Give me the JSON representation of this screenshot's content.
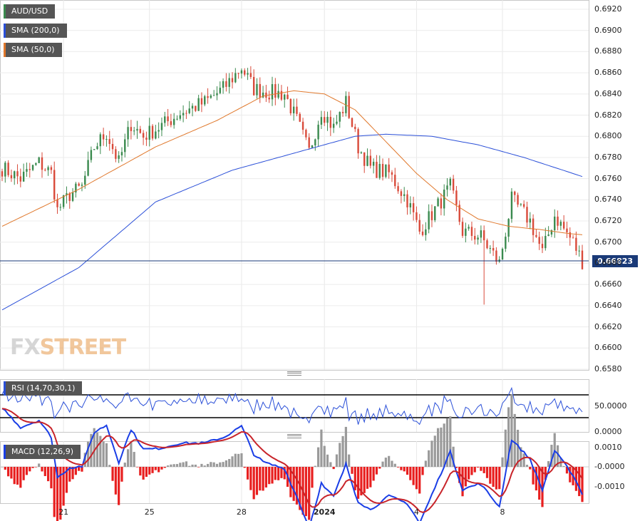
{
  "legend": {
    "symbol": "AUD/USD",
    "sma200": "SMA (200,0)",
    "sma50": "SMA (50,0)",
    "rsi": "RSI (14,70,30,1)",
    "macd": "MACD (12,26,9)"
  },
  "watermark": {
    "part1": "FX",
    "part2": "STREET"
  },
  "last_price": "0.66823",
  "colors": {
    "up": "#3a8a4e",
    "down": "#d94a3a",
    "sma200": "#2a4fd8",
    "sma50": "#e0782c",
    "rsi": "#2a4fd8",
    "macd": "#1a3ee6",
    "signal": "#c8242a",
    "hist_pos": "#9a9a9a",
    "hist_neg": "#e81f1f",
    "price_line": "#1a3a78"
  },
  "main_axis": {
    "ticks": [
      "0.6920",
      "0.6900",
      "0.6880",
      "0.6860",
      "0.6840",
      "0.6820",
      "0.6800",
      "0.6780",
      "0.6760",
      "0.6740",
      "0.6720",
      "0.6700",
      "0.6680",
      "0.6660",
      "0.6640",
      "0.6620",
      "0.6600",
      "0.6580"
    ]
  },
  "rsi_axis": {
    "ticks": [
      "50.0000",
      "0.0000"
    ]
  },
  "macd_axis": {
    "ticks": [
      "0.0010",
      "-0.0000",
      "-0.0010"
    ]
  },
  "x_axis": {
    "ticks": [
      "21",
      "25",
      "28",
      "2024",
      "4",
      "8"
    ],
    "bold_tick": "2024"
  },
  "chart_data": {
    "type": "candlestick",
    "symbol": "AUD/USD",
    "ylim": [
      0.658,
      0.6925
    ],
    "n_bars": 190,
    "close_anchors": [
      [
        0,
        0.677
      ],
      [
        6,
        0.676
      ],
      [
        12,
        0.6775
      ],
      [
        16,
        0.6765
      ],
      [
        18,
        0.673
      ],
      [
        22,
        0.6745
      ],
      [
        26,
        0.6752
      ],
      [
        30,
        0.679
      ],
      [
        34,
        0.6803
      ],
      [
        38,
        0.6775
      ],
      [
        42,
        0.6812
      ],
      [
        46,
        0.68
      ],
      [
        52,
        0.681
      ],
      [
        58,
        0.6822
      ],
      [
        66,
        0.6832
      ],
      [
        72,
        0.6845
      ],
      [
        78,
        0.6865
      ],
      [
        82,
        0.6845
      ],
      [
        86,
        0.6842
      ],
      [
        92,
        0.684
      ],
      [
        96,
        0.6815
      ],
      [
        100,
        0.6785
      ],
      [
        104,
        0.6825
      ],
      [
        108,
        0.6808
      ],
      [
        112,
        0.6832
      ],
      [
        116,
        0.679
      ],
      [
        120,
        0.677
      ],
      [
        126,
        0.6765
      ],
      [
        132,
        0.674
      ],
      [
        136,
        0.671
      ],
      [
        142,
        0.6735
      ],
      [
        146,
        0.6752
      ],
      [
        150,
        0.671
      ],
      [
        156,
        0.6705
      ],
      [
        162,
        0.668
      ],
      [
        166,
        0.674
      ],
      [
        172,
        0.672
      ],
      [
        176,
        0.669
      ],
      [
        180,
        0.6725
      ],
      [
        186,
        0.67
      ],
      [
        189,
        0.6682
      ]
    ],
    "sma200_points": [
      [
        0,
        0.6636
      ],
      [
        25,
        0.6676
      ],
      [
        50,
        0.6738
      ],
      [
        75,
        0.6768
      ],
      [
        100,
        0.6788
      ],
      [
        115,
        0.68
      ],
      [
        125,
        0.6802
      ],
      [
        140,
        0.68
      ],
      [
        155,
        0.6792
      ],
      [
        170,
        0.678
      ],
      [
        189,
        0.6762
      ]
    ],
    "sma50_points": [
      [
        0,
        0.6715
      ],
      [
        25,
        0.675
      ],
      [
        50,
        0.679
      ],
      [
        70,
        0.6815
      ],
      [
        85,
        0.6838
      ],
      [
        95,
        0.6843
      ],
      [
        105,
        0.684
      ],
      [
        115,
        0.6825
      ],
      [
        125,
        0.6795
      ],
      [
        135,
        0.6765
      ],
      [
        145,
        0.674
      ],
      [
        155,
        0.6722
      ],
      [
        165,
        0.6715
      ],
      [
        175,
        0.6712
      ],
      [
        185,
        0.6708
      ],
      [
        189,
        0.6707
      ]
    ],
    "spike_low": {
      "bar": 157,
      "value": 0.6641
    },
    "rsi": {
      "range": [
        0,
        100
      ],
      "overbought": 70,
      "oversold": 30,
      "last": 40
    },
    "macd": {
      "range": [
        -0.0015,
        0.0013
      ]
    },
    "x_tick_bars": [
      20,
      48,
      78,
      105,
      135,
      163
    ]
  }
}
